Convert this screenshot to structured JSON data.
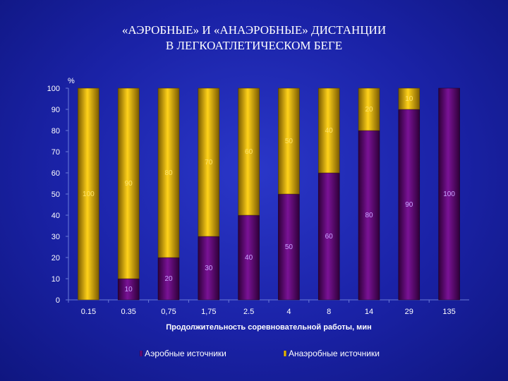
{
  "slide": {
    "title_line1": "«АЭРОБНЫЕ» И «АНАЭРОБНЫЕ» ДИСТАНЦИИ",
    "title_line2": "В ЛЕГКОАТЛЕТИЧЕСКОМ БЕГЕ"
  },
  "colors": {
    "aerobic": "#5a0a6e",
    "anaerobic": "#e6b800",
    "aerobic_label": "#c9a4ff",
    "anaerobic_label": "#ffe46b"
  },
  "chart_data": {
    "type": "bar",
    "stacked": true,
    "percent": true,
    "ylabel": "%",
    "xlabel": "Продолжительность соревновательной работы, мин",
    "ylim": [
      0,
      100
    ],
    "yticks": [
      0,
      10,
      20,
      30,
      40,
      50,
      60,
      70,
      80,
      90,
      100
    ],
    "categories": [
      "0.15",
      "0.35",
      "0,75",
      "1,75",
      "2.5",
      "4",
      "8",
      "14",
      "29",
      "135"
    ],
    "series": [
      {
        "name": "Аэробные источники",
        "values": [
          0,
          10,
          20,
          30,
          40,
          50,
          60,
          80,
          90,
          100
        ]
      },
      {
        "name": "Анаэробные источники",
        "values": [
          100,
          90,
          80,
          70,
          60,
          50,
          40,
          20,
          10,
          0
        ]
      }
    ],
    "legend": "bottom",
    "grid": false
  }
}
